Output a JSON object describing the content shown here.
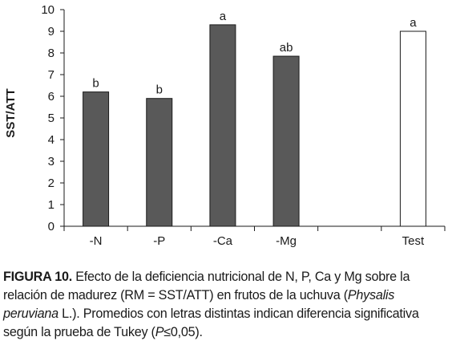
{
  "chart_data": {
    "type": "bar",
    "ylabel": "SST/ATT",
    "ylim": [
      0,
      10
    ],
    "yticks": [
      "0",
      "1",
      "2",
      "3",
      "4",
      "5",
      "6",
      "7",
      "8",
      "9",
      "10"
    ],
    "categories": [
      "-N",
      "-P",
      "-Ca",
      "-Mg",
      "",
      "Test"
    ],
    "values": [
      6.2,
      5.9,
      9.3,
      7.85,
      null,
      9.0
    ],
    "letters": [
      "b",
      "b",
      "a",
      "ab",
      "",
      "a"
    ],
    "bar_fills": [
      "#595959",
      "#595959",
      "#595959",
      "#595959",
      "",
      "#ffffff"
    ],
    "grid": false
  },
  "caption": {
    "label": "FIGURA 10.",
    "part1": " Efecto de la deficiencia nutricional de N, P, Ca y Mg sobre la relación de madurez (RM = SST/ATT) en frutos de la uchuva (",
    "italic1": "Physalis peruviana",
    "part2": " L.). Promedios con letras distintas indican diferencia significativa según la prueba de Tukey (",
    "italic2": "P",
    "part3": "≤0,05)."
  }
}
